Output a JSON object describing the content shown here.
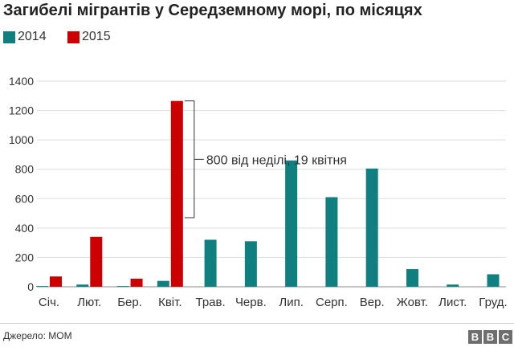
{
  "chart_data": {
    "type": "bar",
    "title": "Загибелі мігрантів у Середземному морі, по місяцях",
    "categories": [
      "Січ.",
      "Лют.",
      "Бер.",
      "Квіт.",
      "Трав.",
      "Черв.",
      "Лип.",
      "Серп.",
      "Вер.",
      "Жовт.",
      "Лист.",
      "Груд."
    ],
    "series": [
      {
        "name": "2014",
        "color": "#0f7f7f",
        "values": [
          5,
          15,
          5,
          40,
          320,
          310,
          860,
          610,
          805,
          120,
          15,
          85
        ]
      },
      {
        "name": "2015",
        "color": "#cc0000",
        "values": [
          70,
          340,
          55,
          1265,
          null,
          null,
          null,
          null,
          null,
          null,
          null,
          null
        ]
      }
    ],
    "ylim": [
      0,
      1400
    ],
    "yticks": [
      0,
      200,
      400,
      600,
      800,
      1000,
      1200,
      1400
    ],
    "grid": true,
    "legend": "top-left",
    "annotation": {
      "text": "800 від неділі, 19 квітня",
      "category": "Квіт.",
      "series": "2015",
      "from": 470,
      "to": 1265
    }
  },
  "source": "Джерело: МОМ",
  "logo": {
    "letters": [
      "B",
      "B",
      "C"
    ]
  }
}
